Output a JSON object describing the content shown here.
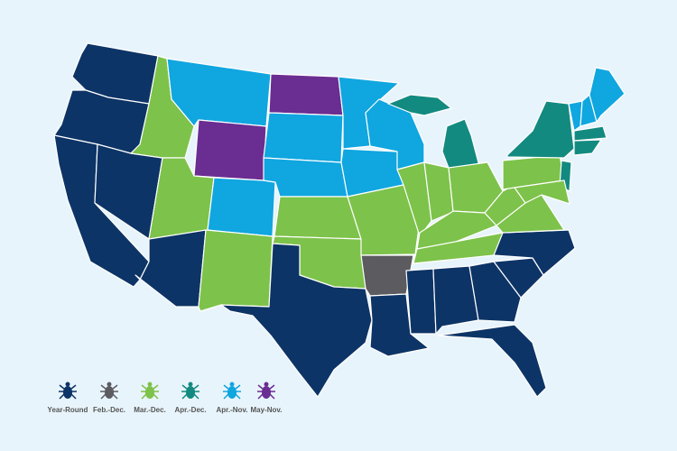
{
  "legend": {
    "items": [
      {
        "label": "Year-Round",
        "color": "#0d3466"
      },
      {
        "label": "Feb.-Dec.",
        "color": "#5c5c60"
      },
      {
        "label": "Mar.-Dec.",
        "color": "#7dc24a"
      },
      {
        "label": "Apr.-Dec.",
        "color": "#138a80"
      },
      {
        "label": "Apr.-Nov.",
        "color": "#10a6e0"
      },
      {
        "label": "May-Nov.",
        "color": "#6a2d91"
      }
    ]
  }
}
